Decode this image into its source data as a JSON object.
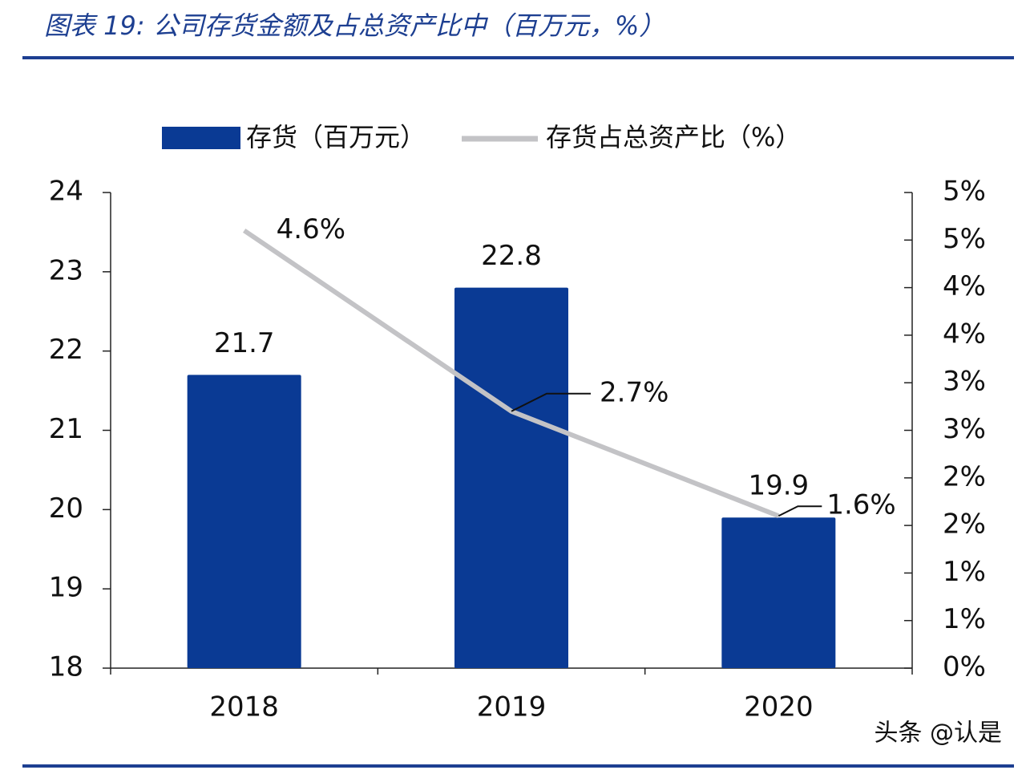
{
  "chart_data": {
    "type": "bar-line",
    "title": "图表 19: 公司存货金额及占总资产比中（百万元，%）",
    "categories": [
      "2018",
      "2019",
      "2020"
    ],
    "series": [
      {
        "name": "存货（百万元）",
        "type": "bar",
        "color": "#0a3a94",
        "values": [
          21.7,
          22.8,
          19.9
        ]
      },
      {
        "name": "存货占总资产比（%）",
        "type": "line",
        "axis": "y2",
        "color": "#c3c3c6",
        "values": [
          4.6,
          2.7,
          1.6
        ],
        "value_labels": [
          "4.6%",
          "2.7%",
          "1.6%"
        ]
      }
    ],
    "ylim": [
      18,
      24
    ],
    "yticks": [
      18,
      19,
      20,
      21,
      22,
      23,
      24
    ],
    "y2lim": [
      0,
      5
    ],
    "y2ticks": [
      {
        "value": 0,
        "label": "0%"
      },
      {
        "value": 0.5,
        "label": "1%"
      },
      {
        "value": 1,
        "label": "1%"
      },
      {
        "value": 1.5,
        "label": "2%"
      },
      {
        "value": 2,
        "label": "2%"
      },
      {
        "value": 2.5,
        "label": "3%"
      },
      {
        "value": 3,
        "label": "3%"
      },
      {
        "value": 3.5,
        "label": "4%"
      },
      {
        "value": 4,
        "label": "4%"
      },
      {
        "value": 4.5,
        "label": "5%"
      },
      {
        "value": 5,
        "label": "5%"
      }
    ],
    "legend": "top",
    "watermark": "头条 @认是"
  }
}
